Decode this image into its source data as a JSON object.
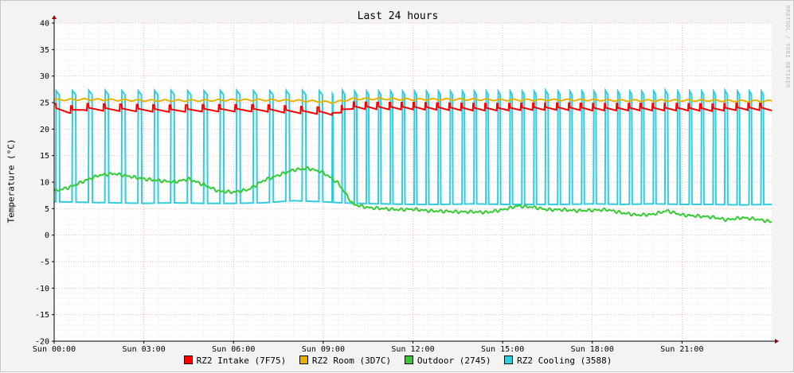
{
  "chart_data": {
    "type": "line",
    "title": "Last 24 hours",
    "ylabel": "Temperature (°C)",
    "watermark": "RRDTOOL / TOBI OETIKER",
    "ylim": [
      -20,
      40
    ],
    "yticks": [
      40,
      35,
      30,
      25,
      20,
      15,
      10,
      5,
      0,
      -5,
      -10,
      -15,
      -20
    ],
    "xlim_hours": [
      0,
      24
    ],
    "xticks": [
      {
        "label": "Sun 00:00",
        "hour": 0
      },
      {
        "label": "Sun 03:00",
        "hour": 3
      },
      {
        "label": "Sun 06:00",
        "hour": 6
      },
      {
        "label": "Sun 09:00",
        "hour": 9
      },
      {
        "label": "Sun 12:00",
        "hour": 12
      },
      {
        "label": "Sun 15:00",
        "hour": 15
      },
      {
        "label": "Sun 18:00",
        "hour": 18
      },
      {
        "label": "Sun 21:00",
        "hour": 21
      }
    ],
    "grid": true,
    "legend_position": "bottom",
    "series": [
      {
        "name": "RZ2 Intake (7F75)",
        "color": "#ff0000",
        "x": [
          0,
          0.5,
          1,
          2,
          3,
          4,
          5,
          6,
          7,
          8,
          9,
          9.3,
          10,
          11,
          12,
          13,
          14,
          15,
          16,
          17,
          18,
          19,
          20,
          21,
          22,
          23,
          24
        ],
        "y": [
          23.5,
          23.0,
          23.5,
          23.4,
          23.3,
          23.2,
          23.3,
          23.3,
          23.3,
          23.0,
          22.8,
          22.6,
          23.8,
          23.7,
          23.7,
          23.6,
          23.5,
          23.5,
          23.6,
          23.6,
          23.5,
          23.5,
          23.5,
          23.5,
          23.4,
          23.6,
          23.5
        ]
      },
      {
        "name": "RZ2 Room (3D7C)",
        "color": "#e6b400",
        "x": [
          0,
          1,
          2,
          3,
          4,
          5,
          6,
          7,
          8,
          9,
          9.3,
          10,
          11,
          12,
          13,
          14,
          15,
          16,
          17,
          18,
          19,
          20,
          21,
          22,
          23,
          24
        ],
        "y": [
          25.5,
          25.6,
          25.5,
          25.4,
          25.4,
          25.4,
          25.5,
          25.5,
          25.4,
          25.2,
          25.0,
          25.7,
          25.7,
          25.6,
          25.6,
          25.6,
          25.5,
          25.5,
          25.5,
          25.5,
          25.4,
          25.4,
          25.4,
          25.4,
          25.3,
          25.3
        ]
      },
      {
        "name": "Outdoor (2745)",
        "color": "#33cc33",
        "x": [
          0,
          0.5,
          1,
          1.5,
          2,
          2.5,
          3,
          3.5,
          4,
          4.5,
          5,
          5.5,
          6,
          6.5,
          7,
          7.5,
          8,
          8.5,
          9,
          9.5,
          10,
          10.5,
          11,
          11.5,
          12,
          12.5,
          13,
          13.5,
          14,
          14.5,
          15,
          15.5,
          16,
          16.5,
          17,
          17.5,
          18,
          18.5,
          19,
          19.5,
          20,
          20.5,
          21,
          21.5,
          22,
          22.5,
          23,
          23.5,
          24
        ],
        "y": [
          8.3,
          9.0,
          10.2,
          11.3,
          11.6,
          11.1,
          10.6,
          10.3,
          10.0,
          10.6,
          9.5,
          8.3,
          8.1,
          8.6,
          10.3,
          11.3,
          12.3,
          12.6,
          11.8,
          9.8,
          5.8,
          5.2,
          5.0,
          4.8,
          4.9,
          4.6,
          4.5,
          4.4,
          4.4,
          4.3,
          4.8,
          5.5,
          5.3,
          4.8,
          4.8,
          4.6,
          4.7,
          4.8,
          4.2,
          3.8,
          3.9,
          4.6,
          3.8,
          3.6,
          3.4,
          2.9,
          3.3,
          3.0,
          2.5
        ]
      },
      {
        "name": "RZ2 Cooling (3588)",
        "color": "#33ccdd",
        "x": [
          0,
          1,
          2,
          3,
          4,
          5,
          6,
          7,
          8,
          9,
          9.3,
          10,
          11,
          12,
          13,
          14,
          15,
          16,
          17,
          18,
          19,
          20,
          21,
          22,
          23,
          24
        ],
        "y": [
          6.3,
          6.2,
          6.1,
          6.0,
          6.1,
          6.0,
          6.0,
          6.1,
          6.5,
          6.3,
          6.2,
          6.0,
          5.9,
          5.8,
          5.8,
          5.9,
          5.8,
          5.8,
          5.8,
          5.9,
          5.8,
          5.9,
          5.8,
          5.8,
          5.7,
          5.8
        ],
        "cycle_peak": 27.3
      }
    ]
  }
}
